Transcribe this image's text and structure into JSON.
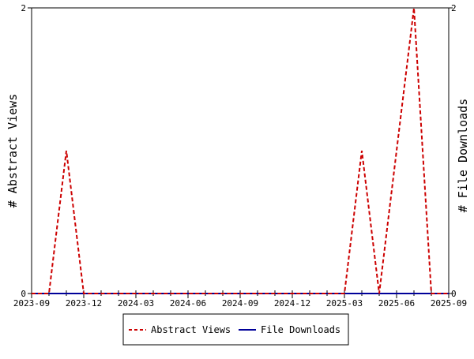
{
  "chart_data": {
    "type": "line",
    "xlabel": "",
    "ylabel_left": "# Abstract Views",
    "ylabel_right": "# File Downloads",
    "x_ticks": [
      "2023-09",
      "2023-12",
      "2024-03",
      "2024-06",
      "2024-09",
      "2024-12",
      "2025-03",
      "2025-06",
      "2025-09"
    ],
    "ylim_left": [
      0,
      2
    ],
    "ylim_right": [
      0,
      2
    ],
    "y_ticks_left": [
      "0",
      "2"
    ],
    "y_ticks_right": [
      "0",
      "2"
    ],
    "x": [
      "2023-09",
      "2023-10",
      "2023-11",
      "2023-12",
      "2024-01",
      "2024-02",
      "2024-03",
      "2024-04",
      "2024-05",
      "2024-06",
      "2024-07",
      "2024-08",
      "2024-09",
      "2024-10",
      "2024-11",
      "2024-12",
      "2025-01",
      "2025-02",
      "2025-03",
      "2025-04",
      "2025-05",
      "2025-06",
      "2025-07",
      "2025-08",
      "2025-09"
    ],
    "series": [
      {
        "name": "Abstract Views",
        "axis": "left",
        "color": "#cc0000",
        "style": "dashed",
        "values": [
          0,
          0,
          1,
          0,
          0,
          0,
          0,
          0,
          0,
          0,
          0,
          0,
          0,
          0,
          0,
          0,
          0,
          0,
          0,
          1,
          0,
          1,
          2,
          0,
          0
        ]
      },
      {
        "name": "File Downloads",
        "axis": "right",
        "color": "#000099",
        "style": "solid",
        "values": [
          0,
          0,
          0,
          0,
          0,
          0,
          0,
          0,
          0,
          0,
          0,
          0,
          0,
          0,
          0,
          0,
          0,
          0,
          0,
          0,
          0,
          0,
          0,
          0,
          0
        ]
      }
    ],
    "grid": false,
    "legend": {
      "placement": "bottom-center",
      "items": [
        "Abstract Views",
        "File Downloads"
      ]
    }
  }
}
